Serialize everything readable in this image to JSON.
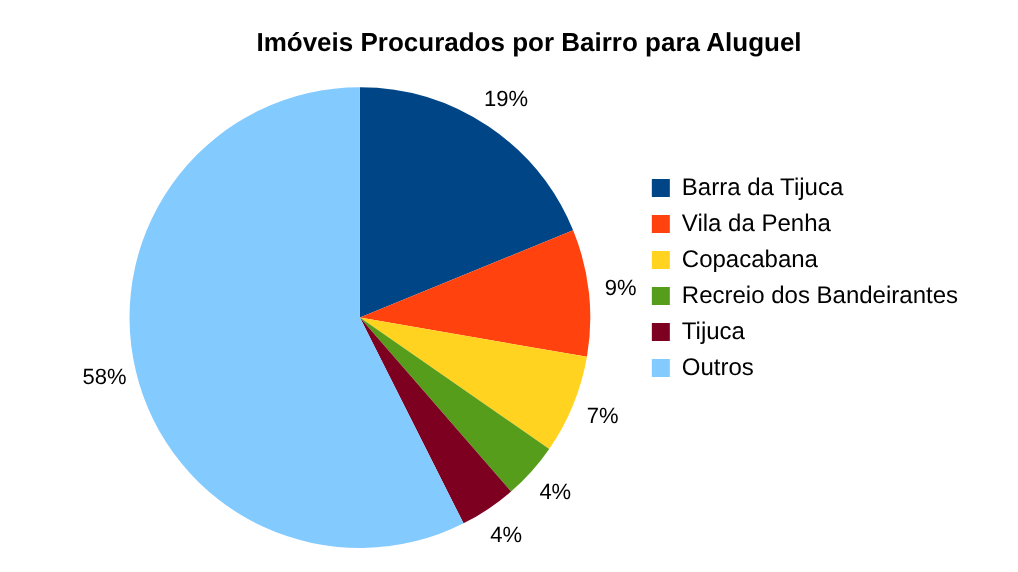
{
  "chart_data": {
    "type": "pie",
    "title": "Imóveis Procurados por Bairro para Aluguel",
    "categories": [
      "Barra da Tijuca",
      "Vila da Penha",
      "Copacabana",
      "Recreio dos Bandeirantes",
      "Tijuca",
      "Outros"
    ],
    "values": [
      19,
      9,
      7,
      4,
      4,
      58
    ],
    "colors": [
      "#004586",
      "#ff420e",
      "#ffd320",
      "#579d1c",
      "#7e0021",
      "#83caff"
    ],
    "value_labels": [
      "19%",
      "9%",
      "7%",
      "4%",
      "4%",
      "58%"
    ],
    "legend": "right"
  }
}
